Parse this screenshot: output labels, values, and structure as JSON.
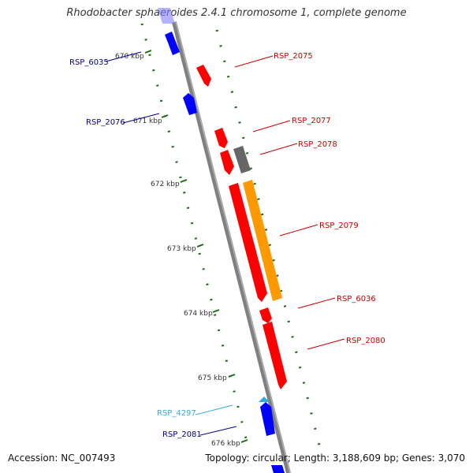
{
  "title": "Rhodobacter sphaeroides 2.4.1 chromosome 1, complete genome",
  "footer": {
    "accession": "Accession: NC_007493",
    "summary": "Topology: circular; Length: 3,188,609 bp; Genes: 3,070"
  },
  "colors": {
    "backbone": "#808080",
    "ticks": "#1a6b1a",
    "reverse_gene": "#0000ff",
    "forward_gene": "#ff0000",
    "pseudo_gene": "#666666",
    "cds_bar": "#ff9900",
    "rna_feature": "#33aadd"
  },
  "ticks": [
    {
      "label": "670 kbp"
    },
    {
      "label": "671 kbp"
    },
    {
      "label": "672 kbp"
    },
    {
      "label": "673 kbp"
    },
    {
      "label": "674 kbp"
    },
    {
      "label": "675 kbp"
    },
    {
      "label": "676 kbp"
    }
  ],
  "features": [
    {
      "label": "RSP_6035",
      "strand": "reverse",
      "type": "gene"
    },
    {
      "label": "RSP_2075",
      "strand": "forward",
      "type": "gene"
    },
    {
      "label": "RSP_2076",
      "strand": "reverse",
      "type": "gene"
    },
    {
      "label": "RSP_2077",
      "strand": "forward",
      "type": "gene"
    },
    {
      "label": "RSP_2078",
      "strand": "forward",
      "type": "gene"
    },
    {
      "label": "RSP_2079",
      "strand": "forward",
      "type": "gene"
    },
    {
      "label": "RSP_6036",
      "strand": "forward",
      "type": "gene"
    },
    {
      "label": "RSP_2080",
      "strand": "forward",
      "type": "gene"
    },
    {
      "label": "RSP_4297",
      "strand": "reverse",
      "type": "rna"
    },
    {
      "label": "RSP_2081",
      "strand": "reverse",
      "type": "gene"
    }
  ]
}
